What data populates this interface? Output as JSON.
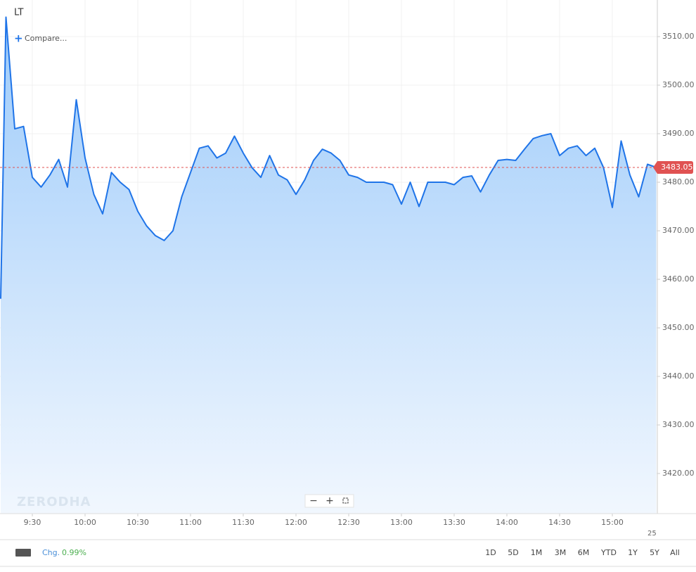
{
  "chart_data": {
    "type": "area",
    "title": "LT",
    "compare": "Compare...",
    "watermark": "ZERODHA",
    "date_label": "25",
    "color": "#1f74e8",
    "x": [
      552,
      555,
      560,
      565,
      570,
      575,
      580,
      585,
      590,
      595,
      600,
      605,
      610,
      615,
      620,
      625,
      630,
      635,
      640,
      645,
      650,
      655,
      660,
      665,
      670,
      675,
      680,
      685,
      690,
      695,
      700,
      705,
      710,
      715,
      720,
      725,
      730,
      735,
      740,
      745,
      750,
      755,
      760,
      765,
      770,
      775,
      780,
      785,
      790,
      795,
      800,
      805,
      810,
      815,
      820,
      825,
      830,
      835,
      840,
      845,
      850,
      855,
      860,
      865,
      870,
      875,
      880,
      885,
      890,
      895,
      900,
      905,
      910,
      915,
      920,
      925
    ],
    "values": [
      3456,
      3514,
      3491,
      3491.5,
      3481,
      3479,
      3481.5,
      3484.7,
      3479,
      3497,
      3485,
      3477.5,
      3473.5,
      3482,
      3480,
      3478.5,
      3474,
      3471,
      3469,
      3468,
      3470,
      3477,
      3482,
      3487,
      3487.5,
      3485,
      3486,
      3489.5,
      3486,
      3483,
      3481,
      3485.5,
      3481.5,
      3480.5,
      3477.5,
      3480.5,
      3484.5,
      3486.8,
      3486,
      3484.5,
      3481.5,
      3481,
      3480,
      3480,
      3480,
      3479.5,
      3475.5,
      3480,
      3475,
      3480,
      3480,
      3480,
      3479.5,
      3481,
      3481.3,
      3478,
      3481.5,
      3484.5,
      3484.7,
      3484.5,
      3486.8,
      3489,
      3489.6,
      3490,
      3485.5,
      3487,
      3487.5,
      3485.5,
      3487,
      3483,
      3474.8,
      3488.5,
      3481.5,
      3477,
      3483.7,
      3483.05
    ],
    "last_value": 3483.05,
    "xlim": [
      551.6,
      925.6
    ],
    "xticks": [
      {
        "value": 570,
        "label": "9:30"
      },
      {
        "value": 600,
        "label": "10:00"
      },
      {
        "value": 630,
        "label": "10:30"
      },
      {
        "value": 660,
        "label": "11:00"
      },
      {
        "value": 690,
        "label": "11:30"
      },
      {
        "value": 720,
        "label": "12:00"
      },
      {
        "value": 750,
        "label": "12:30"
      },
      {
        "value": 780,
        "label": "13:00"
      },
      {
        "value": 810,
        "label": "13:30"
      },
      {
        "value": 840,
        "label": "14:00"
      },
      {
        "value": 870,
        "label": "14:30"
      },
      {
        "value": 900,
        "label": "15:00"
      }
    ],
    "ylim": [
      3411.74,
      3517.54
    ],
    "yticks": [
      {
        "value": 3420,
        "label": "3420.00"
      },
      {
        "value": 3430,
        "label": "3430.00"
      },
      {
        "value": 3440,
        "label": "3440.00"
      },
      {
        "value": 3450,
        "label": "3450.00"
      },
      {
        "value": 3460,
        "label": "3460.00"
      },
      {
        "value": 3470,
        "label": "3470.00"
      },
      {
        "value": 3480,
        "label": "3480.00"
      },
      {
        "value": 3490,
        "label": "3490.00"
      },
      {
        "value": 3500,
        "label": "3500.00"
      },
      {
        "value": 3510,
        "label": "3510.00"
      }
    ],
    "grid": true
  },
  "footer": {
    "change_label": "Chg.",
    "change": "0.99%",
    "ranges": [
      "1D",
      "5D",
      "1M",
      "3M",
      "6M",
      "YTD",
      "1Y",
      "5Y",
      "All"
    ]
  }
}
